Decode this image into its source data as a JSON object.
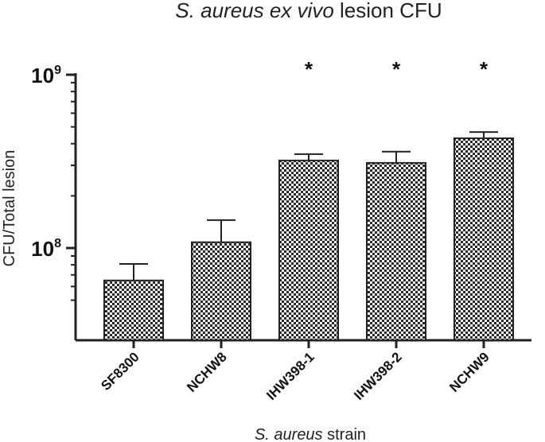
{
  "chart_data": {
    "type": "bar",
    "title_italic": "S. aureus ex vivo",
    "title_rest": " lesion CFU",
    "xlabel_italic": "S. aureus",
    "xlabel_rest": " strain",
    "ylabel": "CFU/Total lesion",
    "yscale": "log",
    "ylim": [
      40000000,
      1000000000
    ],
    "yticks": [
      {
        "value": 100000000,
        "base": "10",
        "exp": "8"
      },
      {
        "value": 1000000000,
        "base": "10",
        "exp": "9"
      }
    ],
    "categories": [
      "SF8300",
      "NCHW8",
      "IHW398-1",
      "IHW398-2",
      "NCHW9"
    ],
    "values": [
      65000000,
      108000000,
      320000000,
      310000000,
      430000000
    ],
    "errors": [
      16000000,
      37000000,
      28000000,
      50000000,
      37000000
    ],
    "significance": [
      "",
      "",
      "*",
      "*",
      "*"
    ],
    "bar_fill": "checkered",
    "grid": false
  }
}
